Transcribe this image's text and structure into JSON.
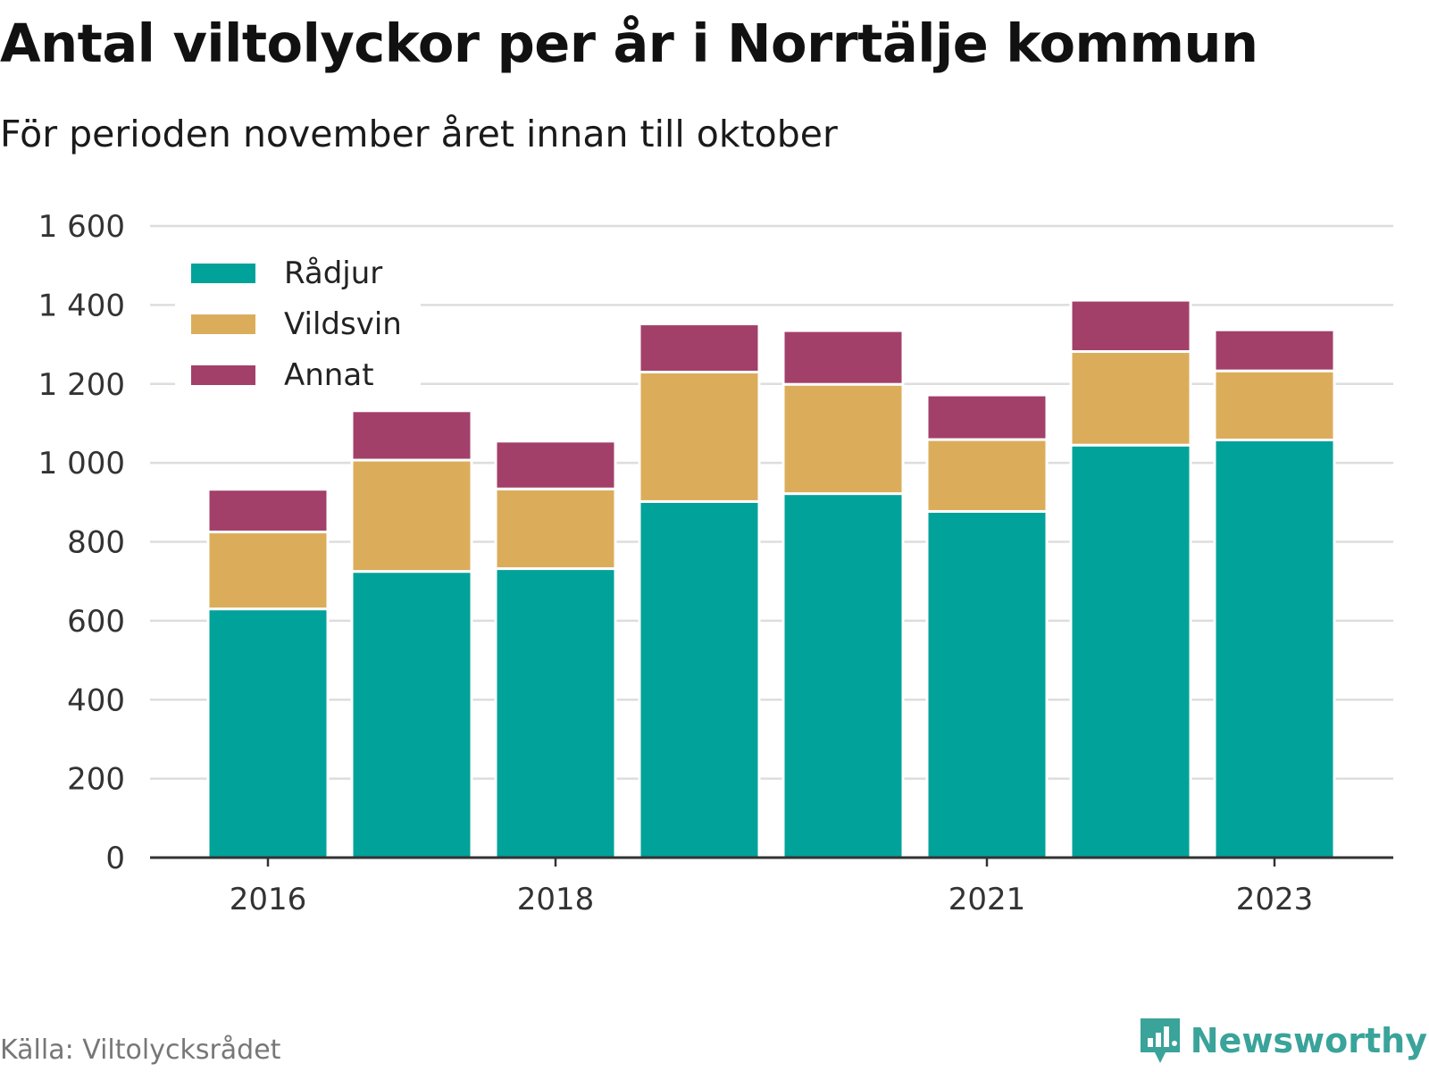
{
  "title": "Antal viltolyckor per år i Norrtälje kommun",
  "subtitle": "För perioden november året innan till oktober",
  "source": "Källa: Viltolycksrådet",
  "brand": {
    "name": "Newsworthy",
    "icon": "newsworthy-logo-icon",
    "color": "#3aa39a"
  },
  "chart_data": {
    "type": "bar",
    "stacked": true,
    "categories": [
      "2016",
      "2017",
      "2018",
      "2019",
      "2020",
      "2021",
      "2022",
      "2023"
    ],
    "x_tick_labels": [
      "2016",
      "2018",
      "2021",
      "2023"
    ],
    "series": [
      {
        "name": "Rådjur",
        "color": "#00a29a",
        "values": [
          630,
          725,
          732,
          902,
          922,
          877,
          1045,
          1058
        ]
      },
      {
        "name": "Vildsvin",
        "color": "#dbad5b",
        "values": [
          195,
          282,
          202,
          328,
          277,
          182,
          237,
          175
        ]
      },
      {
        "name": "Annat",
        "color": "#a24069",
        "values": [
          108,
          125,
          121,
          122,
          136,
          113,
          130,
          104
        ]
      }
    ],
    "ylim": [
      0,
      1600
    ],
    "yticks": [
      0,
      200,
      400,
      600,
      800,
      1000,
      1200,
      1400,
      1600
    ],
    "ytick_labels": [
      "0",
      "200",
      "400",
      "600",
      "800",
      "1 000",
      "1 200",
      "1 400",
      "1 600"
    ],
    "grid": true,
    "legend_position": "top-left",
    "xlabel": "",
    "ylabel": ""
  }
}
